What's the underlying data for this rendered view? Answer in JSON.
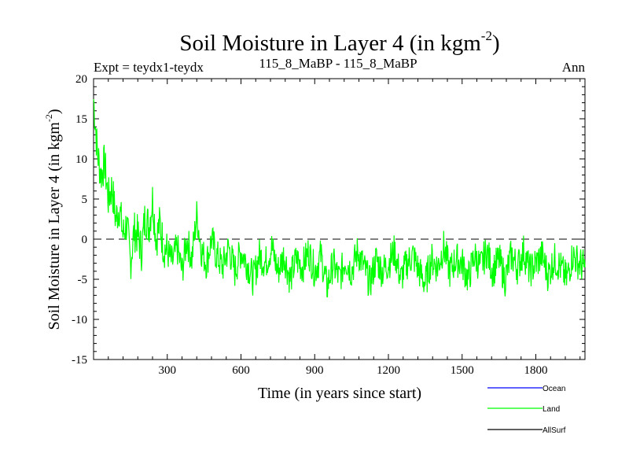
{
  "chart_data": {
    "type": "line",
    "title": "Soil Moisture in Layer 4 (in kgm",
    "title_sup": "-2",
    "title_close": ")",
    "subtitle_left": "Expt = teydx1-teydx",
    "subtitle_center": "115_8_MaBP - 115_8_MaBP",
    "subtitle_right": "Ann",
    "xlabel": "Time (in years since start)",
    "ylabel": "Soil Moisture in Layer 4 (in kgm",
    "ylabel_sup": "-2",
    "ylabel_close": ")",
    "xlim": [
      0,
      2000
    ],
    "ylim": [
      -15,
      20
    ],
    "xticks": [
      300,
      600,
      900,
      1200,
      1500,
      1800
    ],
    "xtick_labels": [
      "300",
      "600",
      "900",
      "1200",
      "1500",
      "1800"
    ],
    "yticks": [
      -15,
      -10,
      -5,
      0,
      5,
      10,
      15,
      20
    ],
    "ytick_labels": [
      "-15",
      "-10",
      "-5",
      "0",
      "5",
      "10",
      "15",
      "20"
    ],
    "zero_line": 0,
    "legend_placement": "bottom-right",
    "series": [
      {
        "name": "Ocean",
        "color": "#0000ff",
        "x": [],
        "values": []
      },
      {
        "name": "Land",
        "color": "#00ff00",
        "x": [
          0,
          15,
          30,
          45,
          60,
          75,
          90,
          105,
          120,
          135,
          150,
          165,
          180,
          195,
          210,
          225,
          240,
          255,
          270,
          285,
          300,
          320,
          340,
          360,
          380,
          400,
          420,
          440,
          460,
          480,
          500,
          525,
          550,
          575,
          600,
          625,
          650,
          675,
          700,
          725,
          750,
          775,
          800,
          825,
          850,
          875,
          900,
          925,
          950,
          975,
          1000,
          1025,
          1050,
          1075,
          1100,
          1125,
          1150,
          1175,
          1200,
          1225,
          1250,
          1275,
          1300,
          1325,
          1350,
          1375,
          1400,
          1425,
          1450,
          1475,
          1500,
          1525,
          1550,
          1575,
          1600,
          1625,
          1650,
          1675,
          1700,
          1725,
          1750,
          1775,
          1800,
          1825,
          1850,
          1875,
          1900,
          1925,
          1950,
          1975,
          2000
        ],
        "values": [
          17.5,
          11,
          8,
          9.5,
          5,
          6.5,
          2.5,
          4,
          0.5,
          2,
          -3,
          1,
          0.5,
          -1.5,
          3,
          1.5,
          5,
          0,
          2,
          -1,
          -1.5,
          -3,
          -1,
          -4,
          0,
          -2.5,
          3,
          -1.5,
          -3,
          0,
          -2,
          -3.5,
          -1,
          -4,
          -1.5,
          -3,
          -5,
          -2,
          -3,
          -1,
          -4,
          -2,
          -5,
          -2.5,
          -3.5,
          -1.5,
          -4,
          -2,
          -6,
          -3,
          -5,
          -2.5,
          -4,
          -1.5,
          -3.5,
          -5.5,
          -2.5,
          -4,
          -3,
          -1.5,
          -5,
          -3,
          -2,
          -4,
          -5.5,
          -2.5,
          -3.5,
          -1,
          -4,
          -2.5,
          -3,
          -5,
          -2,
          -3.5,
          -1.5,
          -4,
          -2.5,
          -5,
          -2,
          -3.5,
          -1.5,
          -4,
          -3,
          -2,
          -4.5,
          -2.5,
          -3.5,
          -5,
          -2,
          -3,
          -3.5
        ]
      },
      {
        "name": "AllSurf",
        "color": "#000000",
        "x": [],
        "values": []
      }
    ]
  }
}
